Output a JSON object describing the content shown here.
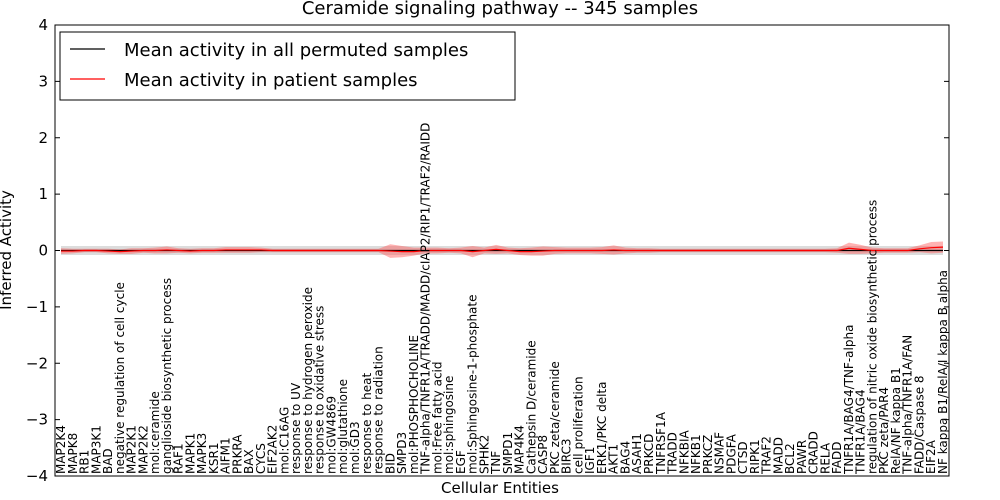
{
  "chart_data": {
    "type": "line",
    "title": "Ceramide signaling pathway -- 345 samples",
    "xlabel": "Cellular Entities",
    "ylabel": "Inferred Activity",
    "ylim": [
      -4,
      4
    ],
    "yticks": [
      -4,
      -3,
      -2,
      -1,
      0,
      1,
      2,
      3,
      4
    ],
    "ytick_labels": [
      "−4",
      "−3",
      "−2",
      "−1",
      "0",
      "1",
      "2",
      "3",
      "4"
    ],
    "grid": false,
    "legend": {
      "position": "top-left",
      "entries": [
        {
          "label": "Mean activity in all permuted samples",
          "color": "#000000"
        },
        {
          "label": "Mean activity in patient samples",
          "color": "#ff0000"
        }
      ]
    },
    "categories": [
      "MAP2K4",
      "MAPK8",
      "RB1",
      "MAP3K1",
      "BAD",
      "negative regulation of cell cycle",
      "MAP2K1",
      "MAP2K2",
      "mol:ceramide",
      "ganglioside biosynthetic process",
      "RAF1",
      "MAPK1",
      "MAPK3",
      "KSR1",
      "AIFM1",
      "PRKRA",
      "BAX",
      "CYCS",
      "EIF2AK2",
      "mol:C16AG",
      "response to UV",
      "response to hydrogen peroxide",
      "response to oxidative stress",
      "mol:GW4869",
      "mol:glutathione",
      "mol:GD3",
      "response to heat",
      "response to radiation",
      "BID",
      "SMPD3",
      "mol:PHOSPHOCHOLINE",
      "TNF-alpha/TNFR1A/TRADD/MADD/cIAP2/RIP1/TRAF2/RAIDD",
      "mol:Free fatty acid",
      "mol:sphingosine",
      "EGF",
      "mol:Sphingosine-1-phosphate",
      "SPHK2",
      "TNF",
      "SMPD1",
      "MAP4K4",
      "Cathepsin D/ceramide",
      "CASP8",
      "PKC zeta/ceramide",
      "BIRC3",
      "cell proliferation",
      "IGF1",
      "ERK1/PKC delta",
      "AKT1",
      "BAG4",
      "ASAH1",
      "PRKCD",
      "TNFRSF1A",
      "TRADD",
      "NFKBIA",
      "NFKB1",
      "PRKCZ",
      "NSMAF",
      "PDGFA",
      "CTSD",
      "RIPK1",
      "TRAF2",
      "MADD",
      "BCL2",
      "PAWR",
      "CRADD",
      "RELA",
      "FADD",
      "TNFR1A/BAG4/TNF-alpha",
      "TNFR1A/BAG4",
      "regulation of nitric oxide biosynthetic process",
      "PKC zeta/PAR4",
      "RelA/NF kappa B1",
      "TNF-alpha/TNFR1A/FAN",
      "FADD/Caspase 8",
      "EIF2A",
      "NF kappa B1/RelA/I kappa B alpha"
    ],
    "series": [
      {
        "name": "Mean activity in all permuted samples",
        "color": "#000000",
        "values": [
          0,
          0,
          0,
          0,
          0,
          0,
          0,
          0,
          0,
          0,
          0,
          0,
          0,
          0,
          0,
          0,
          0,
          0,
          0,
          0,
          0,
          0,
          0,
          0,
          0,
          0,
          0,
          0,
          0,
          0,
          0,
          0,
          0,
          0,
          0,
          0,
          0,
          0,
          0,
          0,
          0,
          0,
          0,
          0,
          0,
          0,
          0,
          0,
          0,
          0,
          0,
          0,
          0,
          0,
          0,
          0,
          0,
          0,
          0,
          0,
          0,
          0,
          0,
          0,
          0,
          0,
          0,
          0,
          0,
          0,
          0,
          0,
          0,
          0,
          0,
          0
        ],
        "band": 0.08
      },
      {
        "name": "Mean activity in patient samples",
        "color": "#ff0000",
        "values": [
          -0.01,
          -0.01,
          0,
          0,
          -0.01,
          -0.02,
          -0.01,
          0,
          0,
          0.01,
          0,
          -0.01,
          0,
          0,
          0.01,
          0.01,
          0.01,
          0.01,
          0,
          0,
          0,
          0,
          0,
          0,
          0,
          0,
          0,
          0,
          -0.01,
          -0.02,
          -0.02,
          0,
          0,
          0,
          0,
          -0.02,
          0,
          0.02,
          0,
          -0.02,
          -0.02,
          -0.01,
          0,
          0,
          0,
          0,
          0,
          0.01,
          0,
          0,
          0,
          0,
          0,
          0,
          0,
          0,
          0,
          0,
          0,
          0,
          0,
          0,
          0,
          0,
          0,
          0,
          0,
          0.04,
          0.02,
          0,
          0,
          0,
          0,
          0.03,
          0.05,
          0.06
        ],
        "band": [
          0.05,
          0.04,
          0.03,
          0.03,
          0.04,
          0.04,
          0.05,
          0.04,
          0.05,
          0.06,
          0.04,
          0.04,
          0.04,
          0.04,
          0.05,
          0.05,
          0.05,
          0.04,
          0.03,
          0.03,
          0.03,
          0.03,
          0.03,
          0.03,
          0.03,
          0.03,
          0.03,
          0.03,
          0.12,
          0.1,
          0.07,
          0.05,
          0.05,
          0.04,
          0.05,
          0.1,
          0.05,
          0.08,
          0.05,
          0.06,
          0.07,
          0.08,
          0.06,
          0.05,
          0.05,
          0.05,
          0.06,
          0.08,
          0.05,
          0.04,
          0.04,
          0.03,
          0.03,
          0.03,
          0.03,
          0.03,
          0.03,
          0.03,
          0.03,
          0.03,
          0.03,
          0.03,
          0.03,
          0.03,
          0.03,
          0.03,
          0.04,
          0.1,
          0.08,
          0.05,
          0.04,
          0.04,
          0.04,
          0.06,
          0.1,
          0.1
        ]
      }
    ]
  }
}
